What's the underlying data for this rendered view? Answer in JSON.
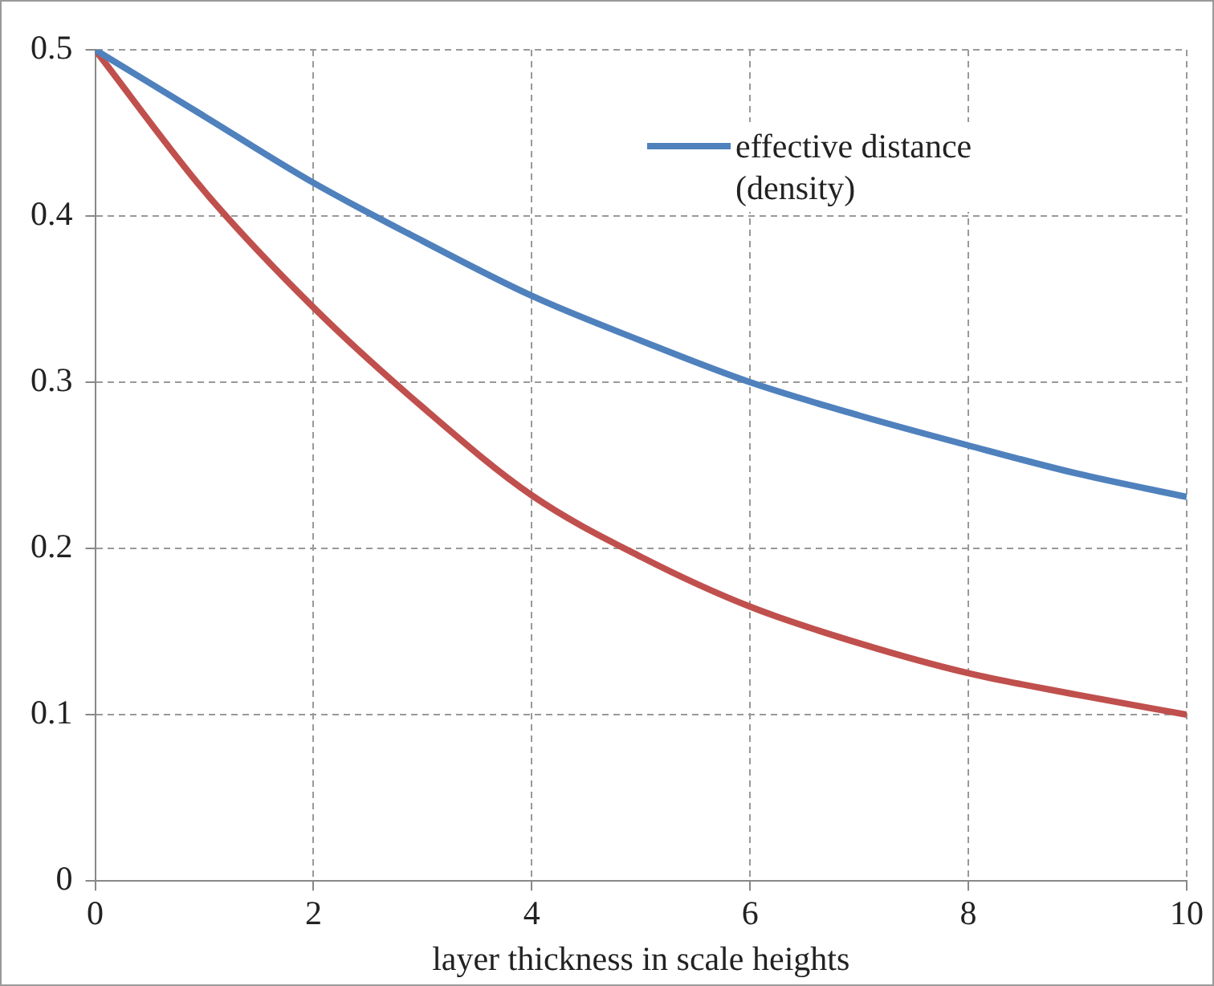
{
  "chart_data": {
    "type": "line",
    "xlabel": "layer thickness in scale heights",
    "x": [
      0,
      1,
      2,
      3,
      4,
      5,
      6,
      7,
      8,
      9,
      10
    ],
    "series": [
      {
        "name": "effective distance (density)",
        "color": "#4f81bd",
        "values": [
          0.5,
          0.46,
          0.42,
          0.385,
          0.352,
          0.325,
          0.3,
          0.28,
          0.262,
          0.245,
          0.231
        ]
      },
      {
        "color": "#c0504d",
        "values": [
          0.5,
          0.415,
          0.345,
          0.285,
          0.232,
          0.195,
          0.165,
          0.143,
          0.125,
          0.112,
          0.1
        ]
      }
    ],
    "xlim": [
      0,
      10
    ],
    "xticks": [
      0,
      2,
      4,
      6,
      8,
      10
    ],
    "ylim": [
      0,
      0.5
    ],
    "yticks": [
      0,
      0.1,
      0.2,
      0.3,
      0.4,
      0.5
    ],
    "grid": true,
    "legend": "top right",
    "marker": "none",
    "line_style": "solid"
  }
}
